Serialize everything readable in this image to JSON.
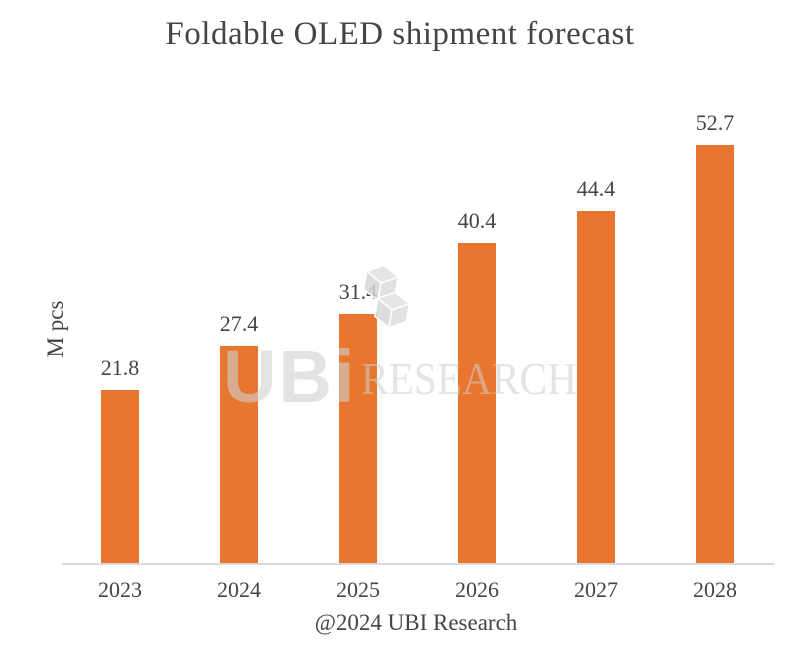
{
  "chart_data": {
    "type": "bar",
    "title": "Foldable OLED shipment forecast",
    "ylabel": "M pcs",
    "caption": "@2024 UBI Research",
    "categories": [
      "2023",
      "2024",
      "2025",
      "2026",
      "2027",
      "2028"
    ],
    "values": [
      21.8,
      27.4,
      31.4,
      40.4,
      44.4,
      52.7
    ],
    "data_labels": [
      "21.8",
      "27.4",
      "31.4",
      "40.4",
      "44.4",
      "52.7"
    ],
    "xlabel": "",
    "ylim": [
      0,
      60
    ],
    "grid": false,
    "legend": "none",
    "bar_color": "#E8762F",
    "text_color": "#454547",
    "axis_line_color": "#D9D9D9"
  },
  "watermark": {
    "brand_text": "UBi",
    "research_text": "RESEARCH",
    "color": "#D9D9D9"
  }
}
